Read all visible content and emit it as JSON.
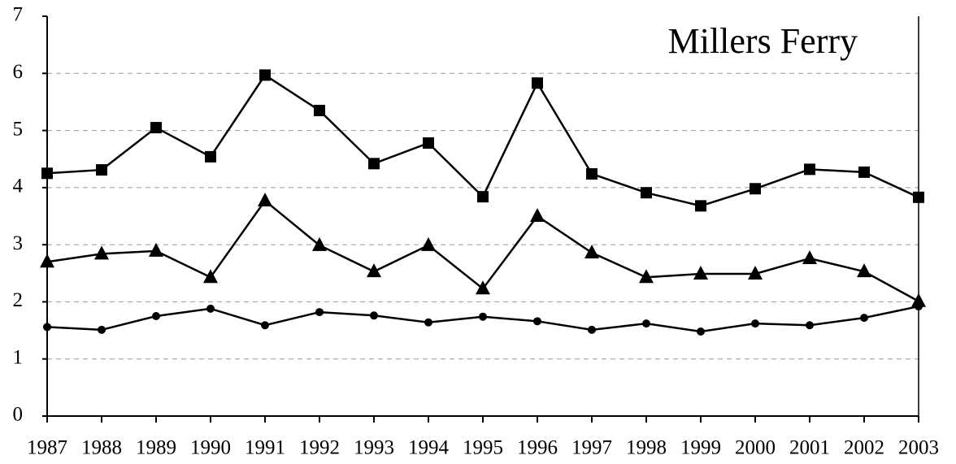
{
  "chart_data": {
    "type": "line",
    "title": "Millers Ferry",
    "x": [
      1987,
      1988,
      1989,
      1990,
      1991,
      1992,
      1993,
      1994,
      1995,
      1996,
      1997,
      1998,
      1999,
      2000,
      2001,
      2002,
      2003
    ],
    "xlim": [
      1987,
      2003
    ],
    "xticks": [
      1987,
      1988,
      1989,
      1990,
      1991,
      1992,
      1993,
      1994,
      1995,
      1996,
      1997,
      1998,
      1999,
      2000,
      2001,
      2002,
      2003
    ],
    "ylim": [
      0,
      7
    ],
    "yticks": [
      0,
      1,
      2,
      3,
      4,
      5,
      6,
      7
    ],
    "grid": true,
    "series": [
      {
        "color": "#000000",
        "marker": "square",
        "values": [
          4.25,
          4.31,
          5.05,
          4.54,
          5.97,
          5.35,
          4.42,
          4.78,
          3.84,
          5.83,
          4.24,
          3.91,
          3.68,
          3.98,
          4.32,
          4.27,
          3.83
        ]
      },
      {
        "color": "#000000",
        "marker": "triangle",
        "values": [
          2.7,
          2.84,
          2.89,
          2.43,
          3.77,
          2.99,
          2.53,
          2.99,
          2.23,
          3.5,
          2.86,
          2.43,
          2.49,
          2.49,
          2.76,
          2.53,
          2.01
        ]
      },
      {
        "color": "#000000",
        "marker": "circle",
        "values": [
          1.56,
          1.51,
          1.75,
          1.88,
          1.59,
          1.82,
          1.76,
          1.64,
          1.74,
          1.66,
          1.51,
          1.62,
          1.48,
          1.62,
          1.59,
          1.72,
          1.92
        ]
      }
    ]
  }
}
